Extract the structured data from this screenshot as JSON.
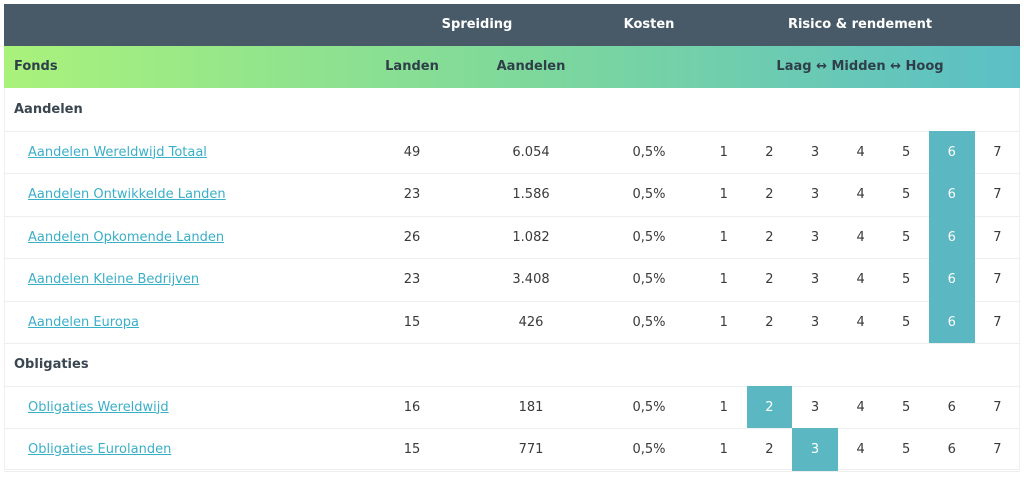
{
  "header": {
    "spreiding": "Spreiding",
    "kosten": "Kosten",
    "risico": "Risico & rendement",
    "fonds": "Fonds",
    "landen": "Landen",
    "aandelen": "Aandelen",
    "scale_label": "Laag ↔ Midden ↔ Hoog"
  },
  "risk_scale": [
    1,
    2,
    3,
    4,
    5,
    6,
    7
  ],
  "groups": [
    {
      "title": "Aandelen",
      "funds": [
        {
          "name": "Aandelen Wereldwijd Totaal",
          "landen": "49",
          "aandelen": "6.054",
          "kosten": "0,5%",
          "risk": 6
        },
        {
          "name": "Aandelen Ontwikkelde Landen",
          "landen": "23",
          "aandelen": "1.586",
          "kosten": "0,5%",
          "risk": 6
        },
        {
          "name": "Aandelen Opkomende Landen",
          "landen": "26",
          "aandelen": "1.082",
          "kosten": "0,5%",
          "risk": 6
        },
        {
          "name": "Aandelen Kleine Bedrijven",
          "landen": "23",
          "aandelen": "3.408",
          "kosten": "0,5%",
          "risk": 6
        },
        {
          "name": "Aandelen Europa",
          "landen": "15",
          "aandelen": "426",
          "kosten": "0,5%",
          "risk": 6
        }
      ]
    },
    {
      "title": "Obligaties",
      "funds": [
        {
          "name": "Obligaties Wereldwijd",
          "landen": "16",
          "aandelen": "181",
          "kosten": "0,5%",
          "risk": 2
        },
        {
          "name": "Obligaties Eurolanden",
          "landen": "15",
          "aandelen": "771",
          "kosten": "0,5%",
          "risk": 3
        }
      ]
    }
  ]
}
